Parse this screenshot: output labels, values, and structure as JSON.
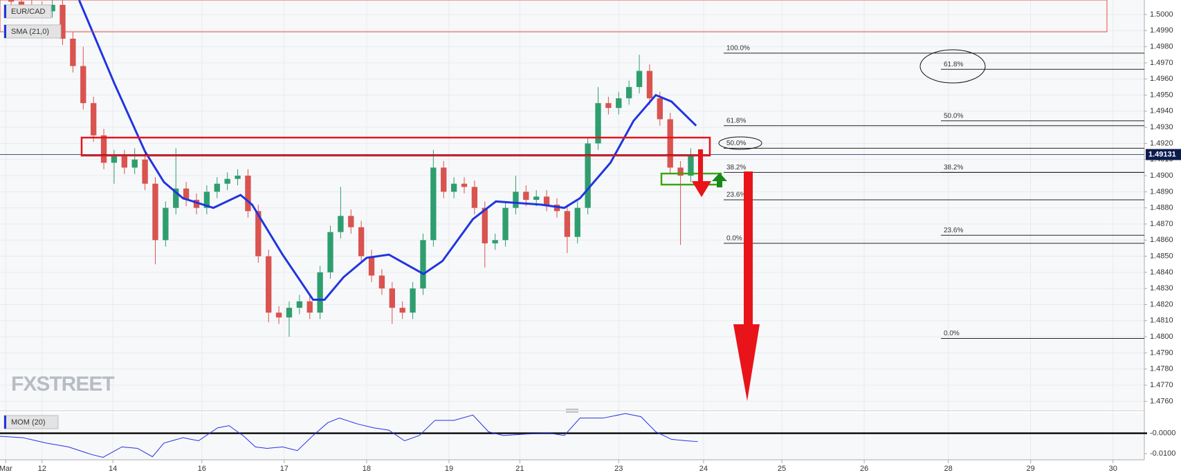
{
  "chart_data": [
    {
      "type": "candlestick",
      "title": "EUR/CAD",
      "watermark": "FXSTREET",
      "x": [
        -0.375,
        -0.25,
        -0.125,
        0,
        0.125,
        0.25,
        0.375,
        0.5,
        0.625,
        0.75,
        0.875,
        1,
        1.125,
        1.25,
        1.375,
        1.5,
        1.625,
        1.75,
        1.875,
        2,
        2.125,
        2.25,
        2.375,
        2.5,
        2.625,
        2.75,
        2.875,
        3,
        3.125,
        3.25,
        3.375,
        3.5,
        3.625,
        3.75,
        3.875,
        4,
        4.125,
        4.25,
        4.375,
        4.5,
        4.625,
        4.75,
        4.875,
        5,
        5.125,
        5.25,
        5.375,
        5.5,
        5.625,
        5.75,
        5.875,
        6,
        6.125,
        6.25,
        6.375,
        6.5,
        6.625,
        6.75,
        6.875,
        7,
        7.125,
        7.25,
        7.375,
        7.5,
        7.625,
        7.75,
        7.875
      ],
      "open": [
        1.5009,
        1.5008,
        1.5006,
        1.5004,
        1.5002,
        1.5006,
        1.4985,
        1.4968,
        1.4945,
        1.4925,
        1.4908,
        1.4912,
        1.4905,
        1.491,
        1.4895,
        1.486,
        1.488,
        1.4892,
        1.4885,
        1.488,
        1.489,
        1.4895,
        1.4898,
        1.49,
        1.4878,
        1.485,
        1.4815,
        1.4812,
        1.4818,
        1.4822,
        1.4815,
        1.484,
        1.4865,
        1.4875,
        1.4868,
        1.485,
        1.4838,
        1.483,
        1.4818,
        1.4815,
        1.483,
        1.486,
        1.4905,
        1.489,
        1.4895,
        1.4893,
        1.488,
        1.4858,
        1.486,
        1.488,
        1.489,
        1.4885,
        1.4887,
        1.4882,
        1.4878,
        1.4862,
        1.488,
        1.492,
        1.4945,
        1.4942,
        1.4948,
        1.4955,
        1.4965,
        1.4948,
        1.4935,
        1.4905,
        1.49
      ],
      "high": [
        1.5013,
        1.5012,
        1.501,
        1.5008,
        1.501,
        1.501,
        1.4989,
        1.498,
        1.4949,
        1.4929,
        1.4916,
        1.4916,
        1.4917,
        1.4914,
        1.4899,
        1.4884,
        1.4917,
        1.4896,
        1.4889,
        1.4894,
        1.4899,
        1.4902,
        1.4904,
        1.4904,
        1.4882,
        1.4854,
        1.4819,
        1.4822,
        1.4826,
        1.4826,
        1.4844,
        1.4869,
        1.4893,
        1.4879,
        1.4872,
        1.4854,
        1.4842,
        1.4834,
        1.4822,
        1.4834,
        1.4864,
        1.4916,
        1.4909,
        1.4899,
        1.4899,
        1.4897,
        1.4884,
        1.4864,
        1.4884,
        1.49,
        1.4894,
        1.4891,
        1.4891,
        1.4886,
        1.4882,
        1.4884,
        1.4924,
        1.4955,
        1.4949,
        1.4952,
        1.4959,
        1.4975,
        1.4969,
        1.4952,
        1.4939,
        1.4909,
        1.4917
      ],
      "low": [
        1.5004,
        1.5002,
        1.5,
        1.4998,
        1.4998,
        1.4981,
        1.4964,
        1.4941,
        1.4921,
        1.4904,
        1.4895,
        1.4901,
        1.4901,
        1.4891,
        1.4845,
        1.4856,
        1.4876,
        1.4881,
        1.4876,
        1.4876,
        1.4886,
        1.4891,
        1.4894,
        1.4874,
        1.4846,
        1.4809,
        1.4808,
        1.48,
        1.4814,
        1.4811,
        1.4811,
        1.4836,
        1.4861,
        1.4864,
        1.4846,
        1.4834,
        1.4826,
        1.4808,
        1.4811,
        1.4811,
        1.4826,
        1.4856,
        1.4886,
        1.4886,
        1.4889,
        1.4876,
        1.4843,
        1.4854,
        1.4856,
        1.4876,
        1.4881,
        1.4881,
        1.4878,
        1.4874,
        1.4852,
        1.4858,
        1.4876,
        1.4916,
        1.4938,
        1.4938,
        1.4944,
        1.4951,
        1.4944,
        1.4931,
        1.4901,
        1.4857,
        1.4896
      ],
      "close": [
        1.5008,
        1.5006,
        1.5004,
        1.5002,
        1.5006,
        1.4985,
        1.4968,
        1.4945,
        1.4925,
        1.4908,
        1.4912,
        1.4905,
        1.491,
        1.4895,
        1.486,
        1.488,
        1.4892,
        1.4885,
        1.488,
        1.489,
        1.4895,
        1.4898,
        1.49,
        1.4878,
        1.485,
        1.4815,
        1.4812,
        1.4818,
        1.4822,
        1.4815,
        1.484,
        1.4865,
        1.4875,
        1.4868,
        1.485,
        1.4838,
        1.483,
        1.4818,
        1.4815,
        1.483,
        1.486,
        1.4905,
        1.489,
        1.4895,
        1.4893,
        1.488,
        1.4858,
        1.486,
        1.488,
        1.489,
        1.4885,
        1.4887,
        1.4882,
        1.4878,
        1.4862,
        1.488,
        1.492,
        1.4945,
        1.4942,
        1.4948,
        1.4955,
        1.4965,
        1.4948,
        1.4935,
        1.4905,
        1.49,
        1.4913
      ],
      "up_color": "#2f9e6f",
      "down_color": "#d9534f",
      "sma": {
        "name": "SMA (21,0)",
        "color": "#1f35e0",
        "x": [
          0.45,
          0.88,
          1.25,
          1.48,
          1.71,
          2.08,
          2.41,
          2.55,
          2.92,
          3.29,
          3.43,
          3.66,
          3.94,
          4.21,
          4.63,
          4.86,
          5.23,
          5.51,
          6.06,
          6.34,
          6.53,
          6.9,
          7.18,
          7.45,
          7.64,
          7.94
        ],
        "values": [
          1.5009,
          1.4957,
          1.4915,
          1.4896,
          1.4886,
          1.488,
          1.4888,
          1.4882,
          1.4851,
          1.4823,
          1.4823,
          1.4837,
          1.4849,
          1.4851,
          1.4839,
          1.4847,
          1.4873,
          1.4884,
          1.4882,
          1.488,
          1.4886,
          1.4908,
          1.4934,
          1.495,
          1.4946,
          1.4931
        ]
      },
      "fib_levels": [
        [
          {
            "name": "100.0%",
            "value": 1.4976
          },
          {
            "name": "61.8%",
            "value": 1.4931
          },
          {
            "name": "50.0%",
            "value": 1.4917
          },
          {
            "name": "38.2%",
            "value": 1.4902
          },
          {
            "name": "23.6%",
            "value": 1.4885
          },
          {
            "name": "0.0%",
            "value": 1.4858
          }
        ],
        [
          {
            "name": "61.8%",
            "value": 1.4966
          },
          {
            "name": "50.0%",
            "value": 1.4934
          },
          {
            "name": "38.2%",
            "value": 1.4902
          },
          {
            "name": "23.6%",
            "value": 1.4863
          },
          {
            "name": "0.0%",
            "value": 1.4799
          }
        ]
      ],
      "last_price": {
        "value": 1.49131,
        "label": "1.49131"
      },
      "xlim": [
        -0.51,
        13.38
      ],
      "xticks": [
        {
          "value": -0.44,
          "label": "Mar"
        },
        {
          "value": 0,
          "label": "12"
        },
        {
          "value": 0.86,
          "label": "14"
        },
        {
          "value": 1.94,
          "label": "16"
        },
        {
          "value": 2.94,
          "label": "17"
        },
        {
          "value": 3.94,
          "label": "18"
        },
        {
          "value": 4.94,
          "label": "19"
        },
        {
          "value": 5.8,
          "label": "21"
        },
        {
          "value": 7.0,
          "label": "23"
        },
        {
          "value": 8.03,
          "label": "24"
        },
        {
          "value": 8.98,
          "label": "25"
        },
        {
          "value": 9.98,
          "label": "26"
        },
        {
          "value": 11.0,
          "label": "28"
        },
        {
          "value": 12.0,
          "label": "29"
        },
        {
          "value": 13.0,
          "label": "30"
        }
      ],
      "ylim": [
        1.4755,
        1.5009
      ],
      "yticks": [
        {
          "value": 1.476,
          "label": "1.4760"
        },
        {
          "value": 1.477,
          "label": "1.4770"
        },
        {
          "value": 1.478,
          "label": "1.4780"
        },
        {
          "value": 1.479,
          "label": "1.4790"
        },
        {
          "value": 1.48,
          "label": "1.4800"
        },
        {
          "value": 1.481,
          "label": "1.4810"
        },
        {
          "value": 1.482,
          "label": "1.4820"
        },
        {
          "value": 1.483,
          "label": "1.4830"
        },
        {
          "value": 1.484,
          "label": "1.4840"
        },
        {
          "value": 1.485,
          "label": "1.4850"
        },
        {
          "value": 1.486,
          "label": "1.4860"
        },
        {
          "value": 1.487,
          "label": "1.4870"
        },
        {
          "value": 1.488,
          "label": "1.4880"
        },
        {
          "value": 1.489,
          "label": "1.4890"
        },
        {
          "value": 1.49,
          "label": "1.4900"
        },
        {
          "value": 1.491,
          "label": "1.4910"
        },
        {
          "value": 1.492,
          "label": "1.4920"
        },
        {
          "value": 1.493,
          "label": "1.4930"
        },
        {
          "value": 1.494,
          "label": "1.4940"
        },
        {
          "value": 1.495,
          "label": "1.4950"
        },
        {
          "value": 1.496,
          "label": "1.4960"
        },
        {
          "value": 1.497,
          "label": "1.4970"
        },
        {
          "value": 1.498,
          "label": "1.4980"
        },
        {
          "value": 1.499,
          "label": "1.4990"
        },
        {
          "value": 1.5,
          "label": "1.5000"
        }
      ],
      "grid": true
    },
    {
      "type": "line",
      "title": "MOM (20)",
      "color": "#2230e8",
      "x": [
        -0.51,
        -0.23,
        0.05,
        0.32,
        0.6,
        0.74,
        0.97,
        1.16,
        1.34,
        1.48,
        1.71,
        1.9,
        2.13,
        2.27,
        2.45,
        2.59,
        2.73,
        2.92,
        3.1,
        3.29,
        3.47,
        3.61,
        3.84,
        4.03,
        4.21,
        4.4,
        4.58,
        4.77,
        5.0,
        5.23,
        5.42,
        5.6,
        5.88,
        6.16,
        6.34,
        6.53,
        6.81,
        7.08,
        7.27,
        7.45,
        7.64,
        7.82,
        7.96
      ],
      "values": [
        -0.0015,
        -0.0022,
        -0.0048,
        -0.0067,
        -0.0104,
        -0.0118,
        -0.0067,
        -0.0074,
        -0.0115,
        -0.0048,
        -0.0022,
        -0.0037,
        0.0026,
        0.0037,
        -0.0015,
        -0.0067,
        -0.0074,
        -0.0067,
        -0.0085,
        -0.0011,
        0.0052,
        0.0074,
        0.0044,
        0.0026,
        0.0015,
        -0.0037,
        -0.0011,
        0.0063,
        0.0063,
        0.0089,
        0.0007,
        -0.0011,
        -0.0004,
        0,
        -0.0011,
        0.0074,
        0.0074,
        0.0096,
        0.0081,
        0.0007,
        -0.003,
        -0.0037,
        -0.0041
      ],
      "ylim": [
        -0.013,
        0.01
      ],
      "yticks": [
        {
          "value": 0,
          "label": "-0.0000"
        },
        {
          "value": -0.01,
          "label": "-0.0100"
        }
      ]
    }
  ]
}
